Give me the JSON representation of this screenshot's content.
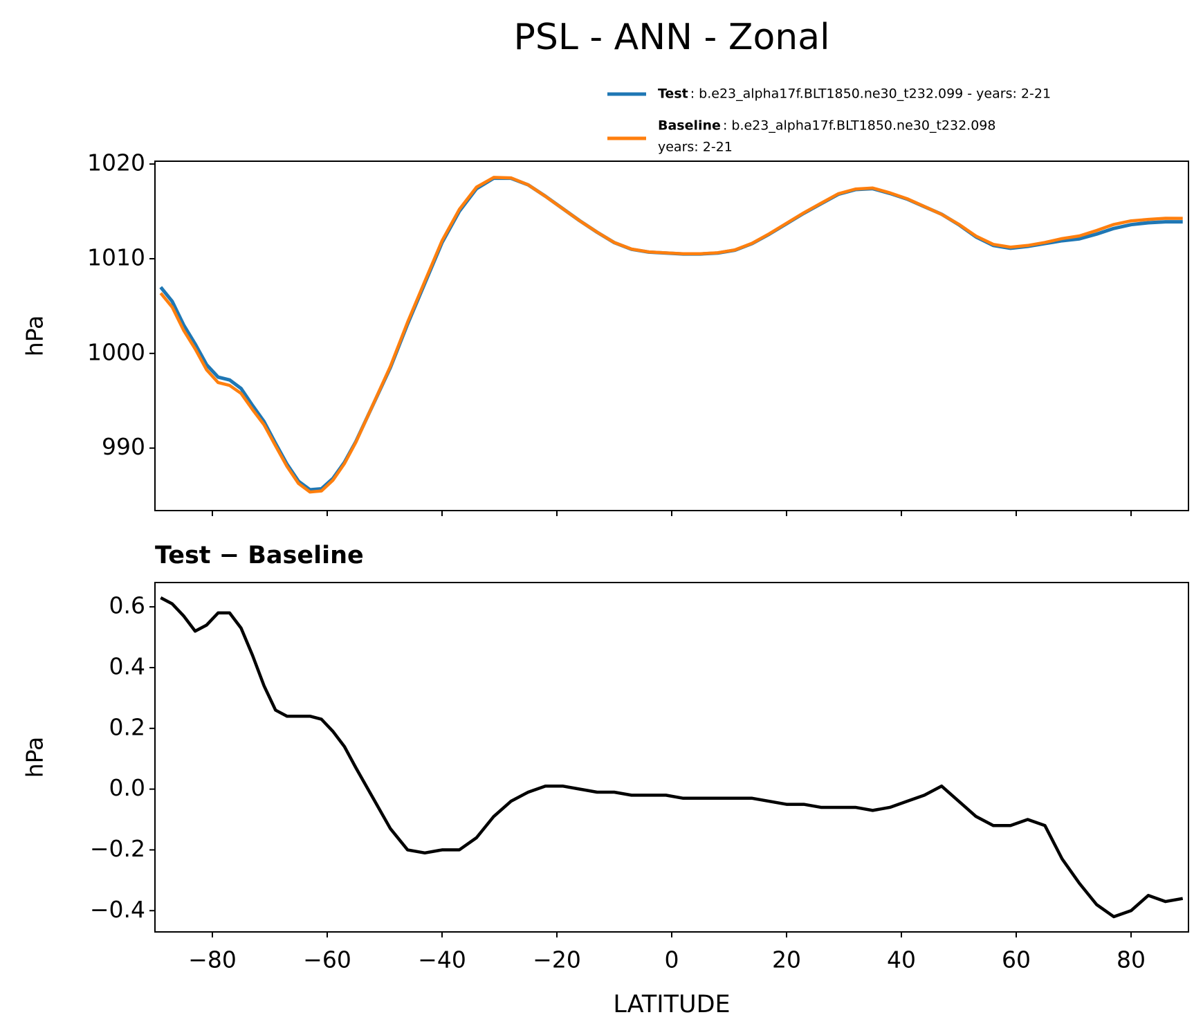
{
  "title": "PSL - ANN - Zonal",
  "chart_data": [
    {
      "type": "line",
      "ylabel": "hPa",
      "show_xtick_labels": false,
      "x": [
        -89,
        -87,
        -85,
        -83,
        -81,
        -79,
        -77,
        -75,
        -73,
        -71,
        -69,
        -67,
        -65,
        -63,
        -61,
        -59,
        -57,
        -55,
        -52,
        -49,
        -46,
        -43,
        -40,
        -37,
        -34,
        -31,
        -28,
        -25,
        -22,
        -19,
        -16,
        -13,
        -10,
        -7,
        -4,
        -1,
        2,
        5,
        8,
        11,
        14,
        17,
        20,
        23,
        26,
        29,
        32,
        35,
        38,
        41,
        44,
        47,
        50,
        53,
        56,
        59,
        62,
        65,
        68,
        71,
        74,
        77,
        80,
        83,
        86,
        89
      ],
      "series": [
        {
          "name": "Test",
          "description": [
            ": b.e23_alpha17f.BLT1850.ne30_t232.099 - years: 2-21"
          ],
          "color": "#1f77b4",
          "values": [
            1007.0,
            1005.5,
            1003.0,
            1001.0,
            998.8,
            997.5,
            997.2,
            996.3,
            994.5,
            992.8,
            990.5,
            988.3,
            986.5,
            985.6,
            985.7,
            986.8,
            988.5,
            990.7,
            994.6,
            998.5,
            1003.1,
            1007.4,
            1011.7,
            1015.0,
            1017.4,
            1018.5,
            1018.5,
            1017.8,
            1016.6,
            1015.3,
            1014.0,
            1012.8,
            1011.7,
            1011.0,
            1010.7,
            1010.6,
            1010.5,
            1010.5,
            1010.6,
            1010.9,
            1011.6,
            1012.6,
            1013.7,
            1014.8,
            1015.8,
            1016.8,
            1017.3,
            1017.4,
            1016.9,
            1016.3,
            1015.5,
            1014.7,
            1013.6,
            1012.3,
            1011.4,
            1011.1,
            1011.3,
            1011.6,
            1011.9,
            1012.1,
            1012.6,
            1013.2,
            1013.6,
            1013.8,
            1013.9,
            1013.9
          ]
        },
        {
          "name": "Baseline",
          "description": [
            ": b.e23_alpha17f.BLT1850.ne30_t232.098",
            "years: 2-21"
          ],
          "color": "#ff7f0e",
          "values": [
            1006.37,
            1004.89,
            1002.43,
            1000.48,
            998.26,
            996.92,
            996.62,
            995.77,
            994.06,
            992.46,
            990.24,
            988.06,
            986.26,
            985.36,
            985.47,
            986.61,
            988.36,
            990.63,
            994.63,
            998.63,
            1003.3,
            1007.61,
            1011.9,
            1015.2,
            1017.56,
            1018.59,
            1018.54,
            1017.81,
            1016.59,
            1015.29,
            1014.0,
            1012.81,
            1011.71,
            1011.02,
            1010.72,
            1010.62,
            1010.53,
            1010.53,
            1010.63,
            1010.93,
            1011.63,
            1012.64,
            1013.75,
            1014.85,
            1015.86,
            1016.86,
            1017.36,
            1017.47,
            1016.96,
            1016.34,
            1015.52,
            1014.69,
            1013.64,
            1012.39,
            1011.52,
            1011.22,
            1011.4,
            1011.72,
            1012.13,
            1012.41,
            1012.98,
            1013.62,
            1014.0,
            1014.15,
            1014.27,
            1014.26
          ]
        }
      ],
      "xlim": [
        -90,
        90
      ],
      "ylim": [
        983.4,
        1020.3
      ],
      "xticks": [
        -80,
        -60,
        -40,
        -20,
        0,
        20,
        40,
        60,
        80
      ],
      "yticks": [
        990,
        1000,
        1010,
        1020
      ]
    },
    {
      "type": "line",
      "title": "Test − Baseline",
      "ylabel": "hPa",
      "xlabel": "LATITUDE",
      "show_xtick_labels": true,
      "x": [
        -89,
        -87,
        -85,
        -83,
        -81,
        -79,
        -77,
        -75,
        -73,
        -71,
        -69,
        -67,
        -65,
        -63,
        -61,
        -59,
        -57,
        -55,
        -52,
        -49,
        -46,
        -43,
        -40,
        -37,
        -34,
        -31,
        -28,
        -25,
        -22,
        -19,
        -16,
        -13,
        -10,
        -7,
        -4,
        -1,
        2,
        5,
        8,
        11,
        14,
        17,
        20,
        23,
        26,
        29,
        32,
        35,
        38,
        41,
        44,
        47,
        50,
        53,
        56,
        59,
        62,
        65,
        68,
        71,
        74,
        77,
        80,
        83,
        86,
        89
      ],
      "series": [
        {
          "color": "#000000",
          "values": [
            0.63,
            0.61,
            0.57,
            0.52,
            0.54,
            0.58,
            0.58,
            0.53,
            0.44,
            0.34,
            0.26,
            0.24,
            0.24,
            0.24,
            0.23,
            0.19,
            0.14,
            0.07,
            -0.03,
            -0.13,
            -0.2,
            -0.21,
            -0.2,
            -0.2,
            -0.16,
            -0.09,
            -0.04,
            -0.01,
            0.01,
            0.01,
            0.0,
            -0.01,
            -0.01,
            -0.02,
            -0.02,
            -0.02,
            -0.03,
            -0.03,
            -0.03,
            -0.03,
            -0.03,
            -0.04,
            -0.05,
            -0.05,
            -0.06,
            -0.06,
            -0.06,
            -0.07,
            -0.06,
            -0.04,
            -0.02,
            0.01,
            -0.04,
            -0.09,
            -0.12,
            -0.12,
            -0.1,
            -0.12,
            -0.23,
            -0.31,
            -0.38,
            -0.42,
            -0.4,
            -0.35,
            -0.37,
            -0.36
          ]
        }
      ],
      "xlim": [
        -90,
        90
      ],
      "ylim": [
        -0.47,
        0.68
      ],
      "xticks": [
        {
          "value": -80,
          "label": "−80"
        },
        {
          "value": -60,
          "label": "−60"
        },
        {
          "value": -40,
          "label": "−40"
        },
        {
          "value": -20,
          "label": "−20"
        },
        0,
        20,
        40,
        60,
        80
      ],
      "yticks": [
        {
          "value": -0.4,
          "label": "−0.4"
        },
        {
          "value": -0.2,
          "label": "−0.2"
        },
        {
          "value": 0,
          "label": "0.0"
        },
        0.2,
        0.4,
        0.6
      ]
    }
  ]
}
